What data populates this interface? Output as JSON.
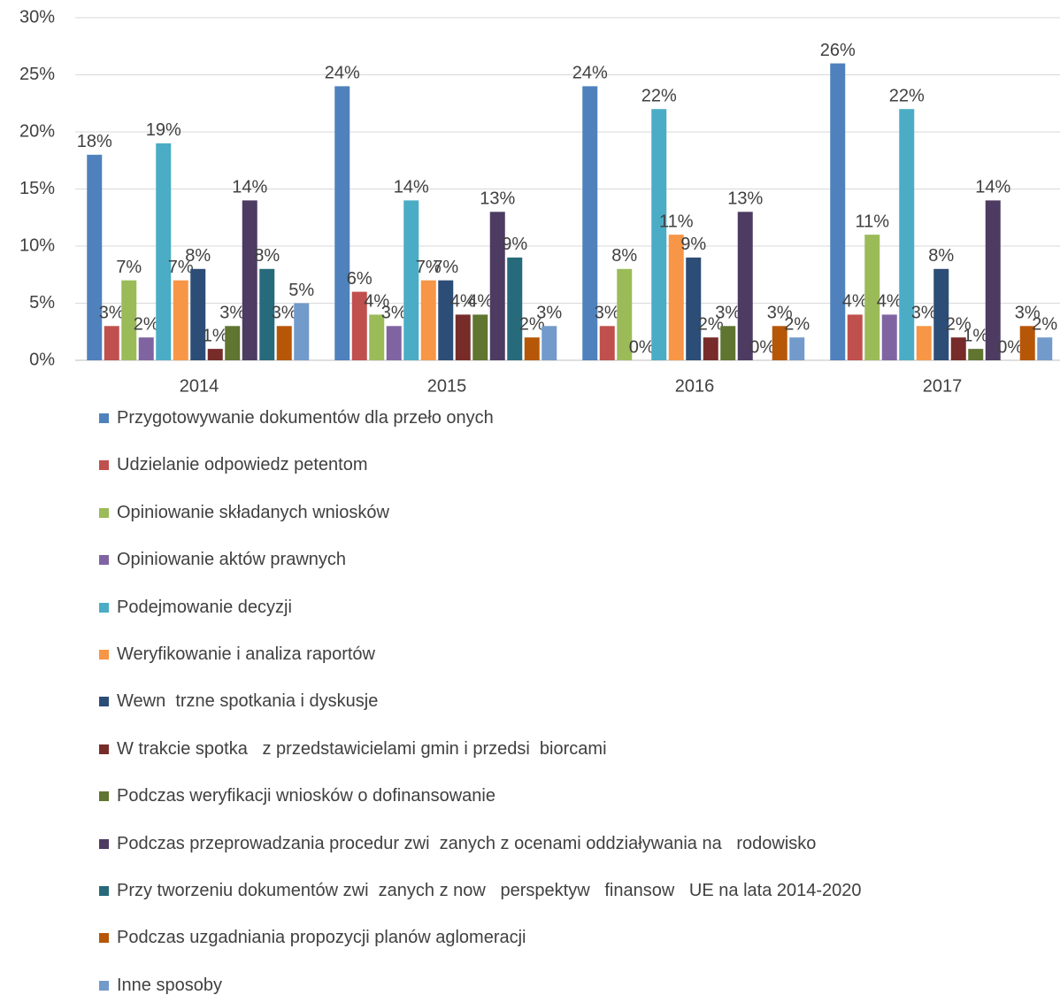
{
  "chart_data": {
    "type": "bar",
    "categories": [
      "2014",
      "2015",
      "2016",
      "2017"
    ],
    "ylim": [
      0,
      30
    ],
    "yticks": [
      {
        "value": 0,
        "label": "0%"
      },
      {
        "value": 5,
        "label": "5%"
      },
      {
        "value": 10,
        "label": "10%"
      },
      {
        "value": 15,
        "label": "15%"
      },
      {
        "value": 20,
        "label": "20%"
      },
      {
        "value": 25,
        "label": "25%"
      },
      {
        "value": 30,
        "label": "30%"
      }
    ],
    "grid": true,
    "legend": "bottom",
    "series": [
      {
        "name": "Przygotowywanie dokumentów dla przeło onych",
        "color": "#4f81bd",
        "values": [
          18,
          24,
          24,
          26
        ],
        "value_labels": [
          "18%",
          "24%",
          "24%",
          "26%"
        ]
      },
      {
        "name": "Udzielanie odpowiedz petentom",
        "color": "#c0504d",
        "values": [
          3,
          6,
          3,
          4
        ],
        "value_labels": [
          "3%",
          "6%",
          "3%",
          "4%"
        ]
      },
      {
        "name": "Opiniowanie składanych wniosków",
        "color": "#9bbb59",
        "values": [
          7,
          4,
          8,
          11
        ],
        "value_labels": [
          "7%",
          "4%",
          "8%",
          "11%"
        ]
      },
      {
        "name": "Opiniowanie aktów prawnych",
        "color": "#8064a2",
        "values": [
          2,
          3,
          0,
          4
        ],
        "value_labels": [
          "2%",
          "3%",
          "0%",
          "4%"
        ]
      },
      {
        "name": "Podejmowanie decyzji",
        "color": "#4bacc6",
        "values": [
          19,
          14,
          22,
          22
        ],
        "value_labels": [
          "19%",
          "14%",
          "22%",
          "22%"
        ]
      },
      {
        "name": "Weryfikowanie i analiza raportów",
        "color": "#f79646",
        "values": [
          7,
          7,
          11,
          3
        ],
        "value_labels": [
          "7%",
          "7%",
          "11%",
          "3%"
        ]
      },
      {
        "name": "Wewn  trzne spotkania i dyskusje",
        "color": "#2c4d75",
        "values": [
          8,
          7,
          9,
          8
        ],
        "value_labels": [
          "8%",
          "7%",
          "9%",
          "8%"
        ]
      },
      {
        "name": "W trakcie spotka   z przedstawicielami gmin i przedsi  biorcami",
        "color": "#772c2a",
        "values": [
          1,
          4,
          2,
          2
        ],
        "value_labels": [
          "1%",
          "4%",
          "2%",
          "2%"
        ]
      },
      {
        "name": "Podczas weryfikacji wniosków o dofinansowanie",
        "color": "#5f7530",
        "values": [
          3,
          4,
          3,
          1
        ],
        "value_labels": [
          "3%",
          "4%",
          "3%",
          "1%"
        ]
      },
      {
        "name": "Podczas przeprowadzania procedur zwi  zanych z ocenami oddziaływania na   rodowisko",
        "color": "#4d3b62",
        "values": [
          14,
          13,
          13,
          14
        ],
        "value_labels": [
          "14%",
          "13%",
          "13%",
          "14%"
        ]
      },
      {
        "name": "Przy tworzeniu dokumentów zwi  zanych z now   perspektyw   finansow   UE na lata 2014-2020",
        "color": "#276a7c",
        "values": [
          8,
          9,
          0,
          0
        ],
        "value_labels": [
          "8%",
          "9%",
          "0%",
          "0%"
        ]
      },
      {
        "name": "Podczas uzgadniania propozycji planów aglomeracji",
        "color": "#b65708",
        "values": [
          3,
          2,
          3,
          3
        ],
        "value_labels": [
          "3%",
          "2%",
          "3%",
          "3%"
        ]
      },
      {
        "name": "Inne sposoby",
        "color": "#729aca",
        "values": [
          5,
          3,
          2,
          2
        ],
        "value_labels": [
          "5%",
          "3%",
          "2%",
          "2%"
        ]
      }
    ]
  }
}
